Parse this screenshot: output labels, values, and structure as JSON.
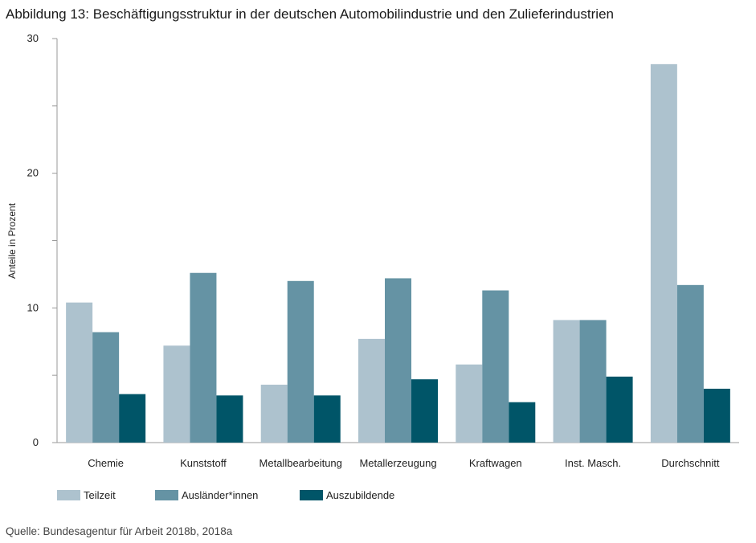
{
  "title": "Abbildung 13: Beschäftigungsstruktur in der deutschen Automobilindustrie und den Zulieferindustrien",
  "source": "Quelle: Bundesagentur für Arbeit 2018b, 2018a",
  "chart_data": {
    "type": "bar",
    "categories": [
      "Chemie",
      "Kunststoff",
      "Metallbearbeitung",
      "Metallerzeugung",
      "Kraftwagen",
      "Inst. Masch.",
      "Durchschnitt"
    ],
    "series": [
      {
        "name": "Teilzeit",
        "color": "#adc2ce",
        "values": [
          10.4,
          7.2,
          4.3,
          7.7,
          5.8,
          9.1,
          28.1
        ]
      },
      {
        "name": "Ausländer*innen",
        "color": "#6593a4",
        "values": [
          8.2,
          12.6,
          12.0,
          12.2,
          11.3,
          9.1,
          11.7
        ]
      },
      {
        "name": "Auszubildende",
        "color": "#005568",
        "values": [
          3.6,
          3.5,
          3.5,
          4.7,
          3.0,
          4.9,
          4.0
        ]
      }
    ],
    "ylabel": "Anteile in Prozent",
    "yticks": [
      0,
      10,
      20,
      30
    ],
    "ylim": [
      0,
      30
    ],
    "legend_position": "bottom-left",
    "grid": false
  }
}
